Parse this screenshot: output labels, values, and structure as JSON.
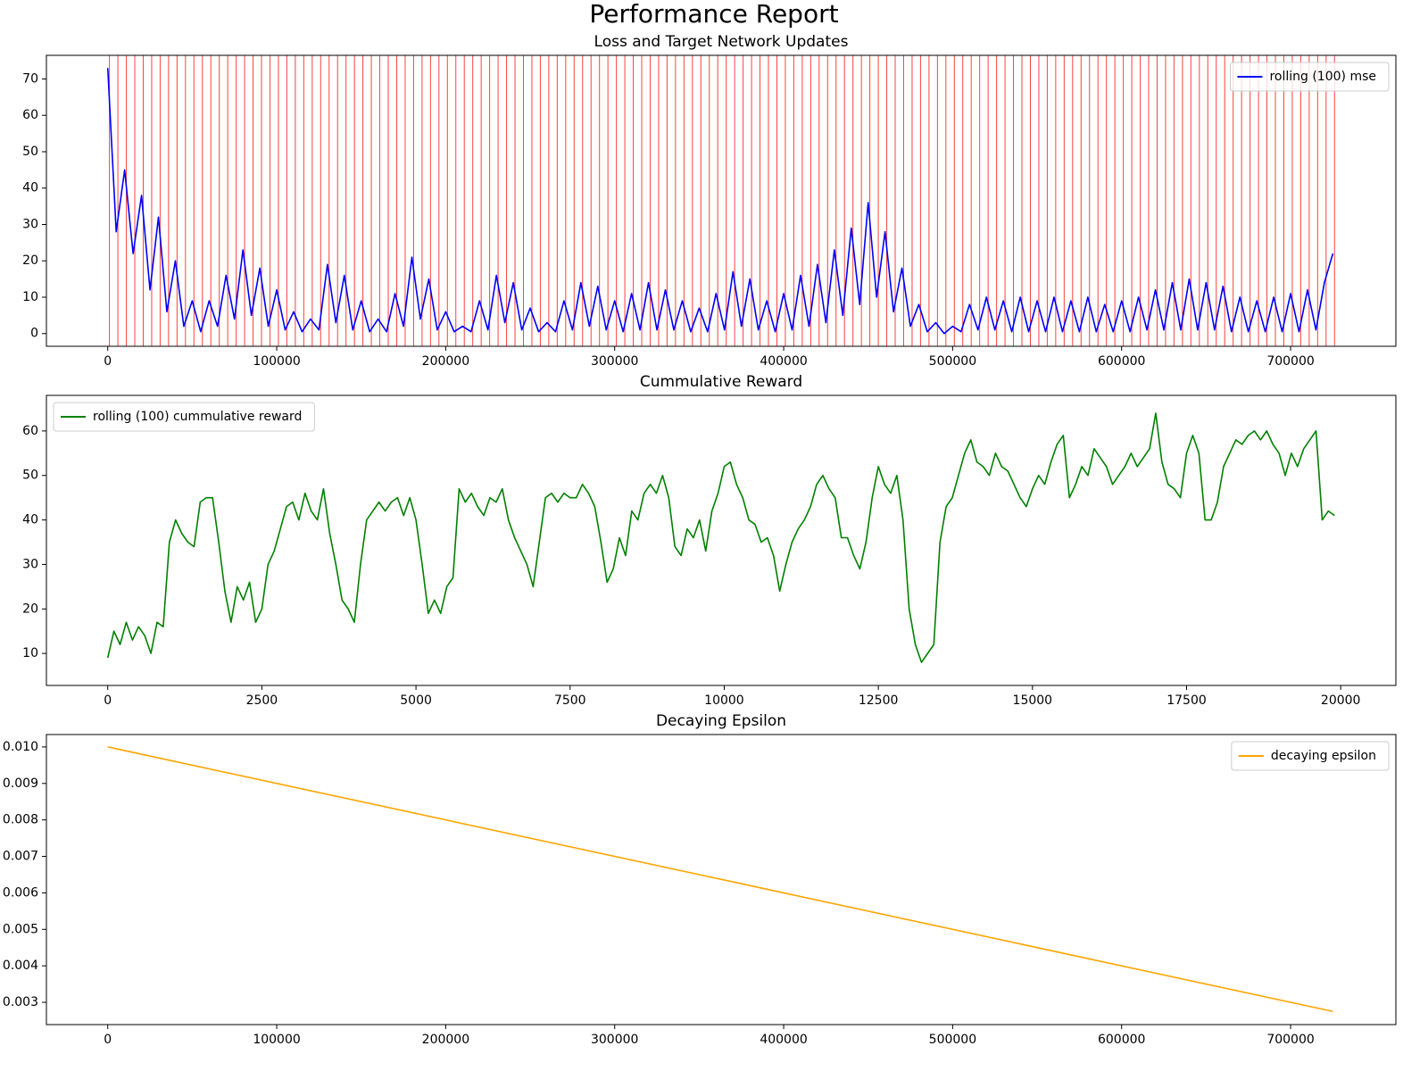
{
  "title": "Performance Report",
  "chart_data": [
    {
      "type": "line",
      "title": "Loss and Target Network Updates",
      "legend": "upper right",
      "xlim": [
        -36300,
        762300
      ],
      "ylim": [
        -3.5,
        76.5
      ],
      "xticks": [
        0,
        100000,
        200000,
        300000,
        400000,
        500000,
        600000,
        700000
      ],
      "yticks": [
        0,
        10,
        20,
        30,
        40,
        50,
        60,
        70
      ],
      "vlines": {
        "color": "red",
        "x": [
          1000,
          6000,
          11000,
          16000,
          21000,
          26000,
          31000,
          36000,
          41000,
          46000,
          51000,
          56000,
          61000,
          66000,
          71000,
          76000,
          81000,
          86000,
          91000,
          96000,
          101000,
          106000,
          111000,
          116000,
          121000,
          126000,
          131000,
          136000,
          141000,
          146000,
          151000,
          156000,
          161000,
          166000,
          171000,
          176000,
          181000,
          186000,
          191000,
          196000,
          201000,
          206000,
          211000,
          216000,
          221000,
          226000,
          231000,
          236000,
          241000,
          246000,
          251000,
          256000,
          261000,
          266000,
          271000,
          276000,
          281000,
          286000,
          291000,
          296000,
          301000,
          306000,
          311000,
          316000,
          321000,
          326000,
          331000,
          336000,
          341000,
          346000,
          351000,
          356000,
          361000,
          366000,
          371000,
          376000,
          381000,
          386000,
          391000,
          396000,
          401000,
          406000,
          411000,
          416000,
          421000,
          426000,
          431000,
          436000,
          441000,
          446000,
          451000,
          456000,
          461000,
          466000,
          471000,
          476000,
          481000,
          486000,
          491000,
          496000,
          501000,
          506000,
          511000,
          516000,
          521000,
          526000,
          531000,
          536000,
          541000,
          546000,
          551000,
          556000,
          561000,
          566000,
          571000,
          576000,
          581000,
          586000,
          591000,
          596000,
          601000,
          606000,
          611000,
          616000,
          621000,
          626000,
          631000,
          636000,
          641000,
          646000,
          651000,
          656000,
          661000,
          666000,
          671000,
          676000,
          681000,
          686000,
          691000,
          696000,
          701000,
          706000,
          711000,
          716000,
          721000,
          726000
        ]
      },
      "x": [
        0,
        5000,
        10000,
        15000,
        20000,
        25000,
        30000,
        35000,
        40000,
        45000,
        50000,
        55000,
        60000,
        65000,
        70000,
        75000,
        80000,
        85000,
        90000,
        95000,
        100000,
        105000,
        110000,
        115000,
        120000,
        125000,
        130000,
        135000,
        140000,
        145000,
        150000,
        155000,
        160000,
        165000,
        170000,
        175000,
        180000,
        185000,
        190000,
        195000,
        200000,
        205000,
        210000,
        215000,
        220000,
        225000,
        230000,
        235000,
        240000,
        245000,
        250000,
        255000,
        260000,
        265000,
        270000,
        275000,
        280000,
        285000,
        290000,
        295000,
        300000,
        305000,
        310000,
        315000,
        320000,
        325000,
        330000,
        335000,
        340000,
        345000,
        350000,
        355000,
        360000,
        365000,
        370000,
        375000,
        380000,
        385000,
        390000,
        395000,
        400000,
        405000,
        410000,
        415000,
        420000,
        425000,
        430000,
        435000,
        440000,
        445000,
        450000,
        455000,
        460000,
        465000,
        470000,
        475000,
        480000,
        485000,
        490000,
        495000,
        500000,
        505000,
        510000,
        515000,
        520000,
        525000,
        530000,
        535000,
        540000,
        545000,
        550000,
        555000,
        560000,
        565000,
        570000,
        575000,
        580000,
        585000,
        590000,
        595000,
        600000,
        605000,
        610000,
        615000,
        620000,
        625000,
        630000,
        635000,
        640000,
        645000,
        650000,
        655000,
        660000,
        665000,
        670000,
        675000,
        680000,
        685000,
        690000,
        695000,
        700000,
        705000,
        710000,
        715000,
        720000,
        725000
      ],
      "series": [
        {
          "name": "rolling (100) mse",
          "color": "blue",
          "values": [
            73,
            28,
            45,
            22,
            38,
            12,
            32,
            6,
            20,
            2,
            9,
            0.5,
            9,
            2,
            16,
            4,
            23,
            5,
            18,
            2,
            12,
            1,
            6,
            0.5,
            4,
            1,
            19,
            3,
            16,
            1,
            9,
            0.5,
            4,
            0.5,
            11,
            2,
            21,
            4,
            15,
            1,
            6,
            0.5,
            2,
            0.5,
            9,
            1,
            16,
            3,
            14,
            1,
            7,
            0.5,
            3,
            0.5,
            9,
            1,
            14,
            2,
            13,
            1,
            9,
            0.5,
            11,
            1,
            14,
            1,
            12,
            1,
            9,
            0.5,
            7,
            0.5,
            11,
            1,
            17,
            2,
            15,
            1,
            9,
            0.5,
            11,
            1,
            16,
            2,
            19,
            3,
            23,
            5,
            29,
            8,
            36,
            10,
            28,
            6,
            18,
            2,
            8,
            0.5,
            3,
            0,
            2,
            0.5,
            8,
            1,
            10,
            1,
            9,
            0.5,
            10,
            0.5,
            9,
            0.5,
            10,
            0.5,
            9,
            0.5,
            10,
            0.5,
            8,
            0.5,
            9,
            0.5,
            10,
            1,
            12,
            1,
            14,
            1,
            15,
            1,
            14,
            1,
            13,
            0.5,
            10,
            0.5,
            9,
            0.5,
            10,
            0.5,
            11,
            0.5,
            12,
            1,
            14,
            22
          ]
        }
      ]
    },
    {
      "type": "line",
      "title": "Cummulative Reward",
      "legend": "upper left",
      "xlim": [
        -995,
        20895
      ],
      "ylim": [
        2.8,
        68
      ],
      "xticks": [
        0,
        2500,
        5000,
        7500,
        10000,
        12500,
        15000,
        17500,
        20000
      ],
      "yticks": [
        10,
        20,
        30,
        40,
        50,
        60
      ],
      "x": [
        0,
        100,
        200,
        300,
        400,
        500,
        600,
        700,
        800,
        900,
        1000,
        1100,
        1200,
        1300,
        1400,
        1500,
        1600,
        1700,
        1800,
        1900,
        2000,
        2100,
        2200,
        2300,
        2400,
        2500,
        2600,
        2700,
        2800,
        2900,
        3000,
        3100,
        3200,
        3300,
        3400,
        3500,
        3600,
        3700,
        3800,
        3900,
        4000,
        4100,
        4200,
        4300,
        4400,
        4500,
        4600,
        4700,
        4800,
        4900,
        5000,
        5100,
        5200,
        5300,
        5400,
        5500,
        5600,
        5700,
        5800,
        5900,
        6000,
        6100,
        6200,
        6300,
        6400,
        6500,
        6600,
        6700,
        6800,
        6900,
        7000,
        7100,
        7200,
        7300,
        7400,
        7500,
        7600,
        7700,
        7800,
        7900,
        8000,
        8100,
        8200,
        8300,
        8400,
        8500,
        8600,
        8700,
        8800,
        8900,
        9000,
        9100,
        9200,
        9300,
        9400,
        9500,
        9600,
        9700,
        9800,
        9900,
        10000,
        10100,
        10200,
        10300,
        10400,
        10500,
        10600,
        10700,
        10800,
        10900,
        11000,
        11100,
        11200,
        11300,
        11400,
        11500,
        11600,
        11700,
        11800,
        11900,
        12000,
        12100,
        12200,
        12300,
        12400,
        12500,
        12600,
        12700,
        12800,
        12900,
        13000,
        13100,
        13200,
        13300,
        13400,
        13500,
        13600,
        13700,
        13800,
        13900,
        14000,
        14100,
        14200,
        14300,
        14400,
        14500,
        14600,
        14700,
        14800,
        14900,
        15000,
        15100,
        15200,
        15300,
        15400,
        15500,
        15600,
        15700,
        15800,
        15900,
        16000,
        16100,
        16200,
        16300,
        16400,
        16500,
        16600,
        16700,
        16800,
        16900,
        17000,
        17100,
        17200,
        17300,
        17400,
        17500,
        17600,
        17700,
        17800,
        17900,
        18000,
        18100,
        18200,
        18300,
        18400,
        18500,
        18600,
        18700,
        18800,
        18900,
        19000,
        19100,
        19200,
        19300,
        19400,
        19500,
        19600,
        19700,
        19800,
        19900
      ],
      "series": [
        {
          "name": "rolling (100) cummulative reward",
          "color": "green",
          "values": [
            9,
            15,
            12,
            17,
            13,
            16,
            14,
            10,
            17,
            16,
            35,
            40,
            37,
            35,
            34,
            44,
            45,
            45,
            35,
            24,
            17,
            25,
            22,
            26,
            17,
            20,
            30,
            33,
            38,
            43,
            44,
            40,
            46,
            42,
            40,
            47,
            37,
            30,
            22,
            20,
            17,
            30,
            40,
            42,
            44,
            42,
            44,
            45,
            41,
            45,
            40,
            30,
            19,
            22,
            19,
            25,
            27,
            47,
            44,
            46,
            43,
            41,
            45,
            44,
            47,
            40,
            36,
            33,
            30,
            25,
            35,
            45,
            46,
            44,
            46,
            45,
            45,
            48,
            46,
            43,
            35,
            26,
            29,
            36,
            32,
            42,
            40,
            46,
            48,
            46,
            50,
            45,
            34,
            32,
            38,
            36,
            40,
            33,
            42,
            46,
            52,
            53,
            48,
            45,
            40,
            39,
            35,
            36,
            32,
            24,
            30,
            35,
            38,
            40,
            43,
            48,
            50,
            47,
            45,
            36,
            36,
            32,
            29,
            35,
            45,
            52,
            48,
            46,
            50,
            40,
            20,
            12,
            8,
            10,
            12,
            35,
            43,
            45,
            50,
            55,
            58,
            53,
            52,
            50,
            55,
            52,
            51,
            48,
            45,
            43,
            47,
            50,
            48,
            53,
            57,
            59,
            45,
            48,
            52,
            50,
            56,
            54,
            52,
            48,
            50,
            52,
            55,
            52,
            54,
            56,
            64,
            53,
            48,
            47,
            45,
            55,
            59,
            55,
            40,
            40,
            44,
            52,
            55,
            58,
            57,
            59,
            60,
            58,
            60,
            57,
            55,
            50,
            55,
            52,
            56,
            58,
            60,
            40,
            42,
            41
          ]
        }
      ]
    },
    {
      "type": "line",
      "title": "Decaying Epsilon",
      "legend": "upper right",
      "xlim": [
        -36300,
        762300
      ],
      "ylim": [
        0.00239,
        0.01034
      ],
      "xticks": [
        0,
        100000,
        200000,
        300000,
        400000,
        500000,
        600000,
        700000
      ],
      "yticks": [
        0.003,
        0.004,
        0.005,
        0.006,
        0.007,
        0.008,
        0.009,
        {
          "value": 0.01,
          "label": "0.010"
        }
      ],
      "x": [
        0,
        725000
      ],
      "series": [
        {
          "name": "decaying epsilon",
          "color": "orange",
          "values": [
            0.01,
            0.00275
          ]
        }
      ]
    }
  ]
}
